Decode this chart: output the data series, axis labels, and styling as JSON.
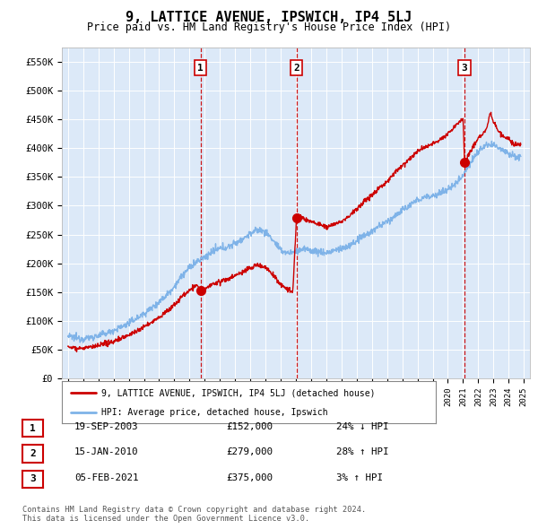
{
  "title": "9, LATTICE AVENUE, IPSWICH, IP4 5LJ",
  "subtitle": "Price paid vs. HM Land Registry's House Price Index (HPI)",
  "title_fontsize": 11,
  "subtitle_fontsize": 8.5,
  "background_color": "#ffffff",
  "plot_bg_color": "#dce9f8",
  "grid_color": "#ffffff",
  "sale_color": "#cc0000",
  "hpi_color": "#7fb3e8",
  "vline_color": "#cc0000",
  "ylim": [
    0,
    575000
  ],
  "ytick_labels": [
    "£0",
    "£50K",
    "£100K",
    "£150K",
    "£200K",
    "£250K",
    "£300K",
    "£350K",
    "£400K",
    "£450K",
    "£500K",
    "£550K"
  ],
  "ytick_values": [
    0,
    50000,
    100000,
    150000,
    200000,
    250000,
    300000,
    350000,
    400000,
    450000,
    500000,
    550000
  ],
  "sale_dates_num": [
    2003.72,
    2010.04,
    2021.09
  ],
  "sale_prices": [
    152000,
    279000,
    375000
  ],
  "sale_labels": [
    "1",
    "2",
    "3"
  ],
  "vline_dates": [
    2003.72,
    2010.04,
    2021.09
  ],
  "legend_sale_label": "9, LATTICE AVENUE, IPSWICH, IP4 5LJ (detached house)",
  "legend_hpi_label": "HPI: Average price, detached house, Ipswich",
  "table_rows": [
    {
      "num": "1",
      "date": "19-SEP-2003",
      "price": "£152,000",
      "hpi": "24% ↓ HPI"
    },
    {
      "num": "2",
      "date": "15-JAN-2010",
      "price": "£279,000",
      "hpi": "28% ↑ HPI"
    },
    {
      "num": "3",
      "date": "05-FEB-2021",
      "price": "£375,000",
      "hpi": "3% ↑ HPI"
    }
  ],
  "footer": "Contains HM Land Registry data © Crown copyright and database right 2024.\nThis data is licensed under the Open Government Licence v3.0."
}
